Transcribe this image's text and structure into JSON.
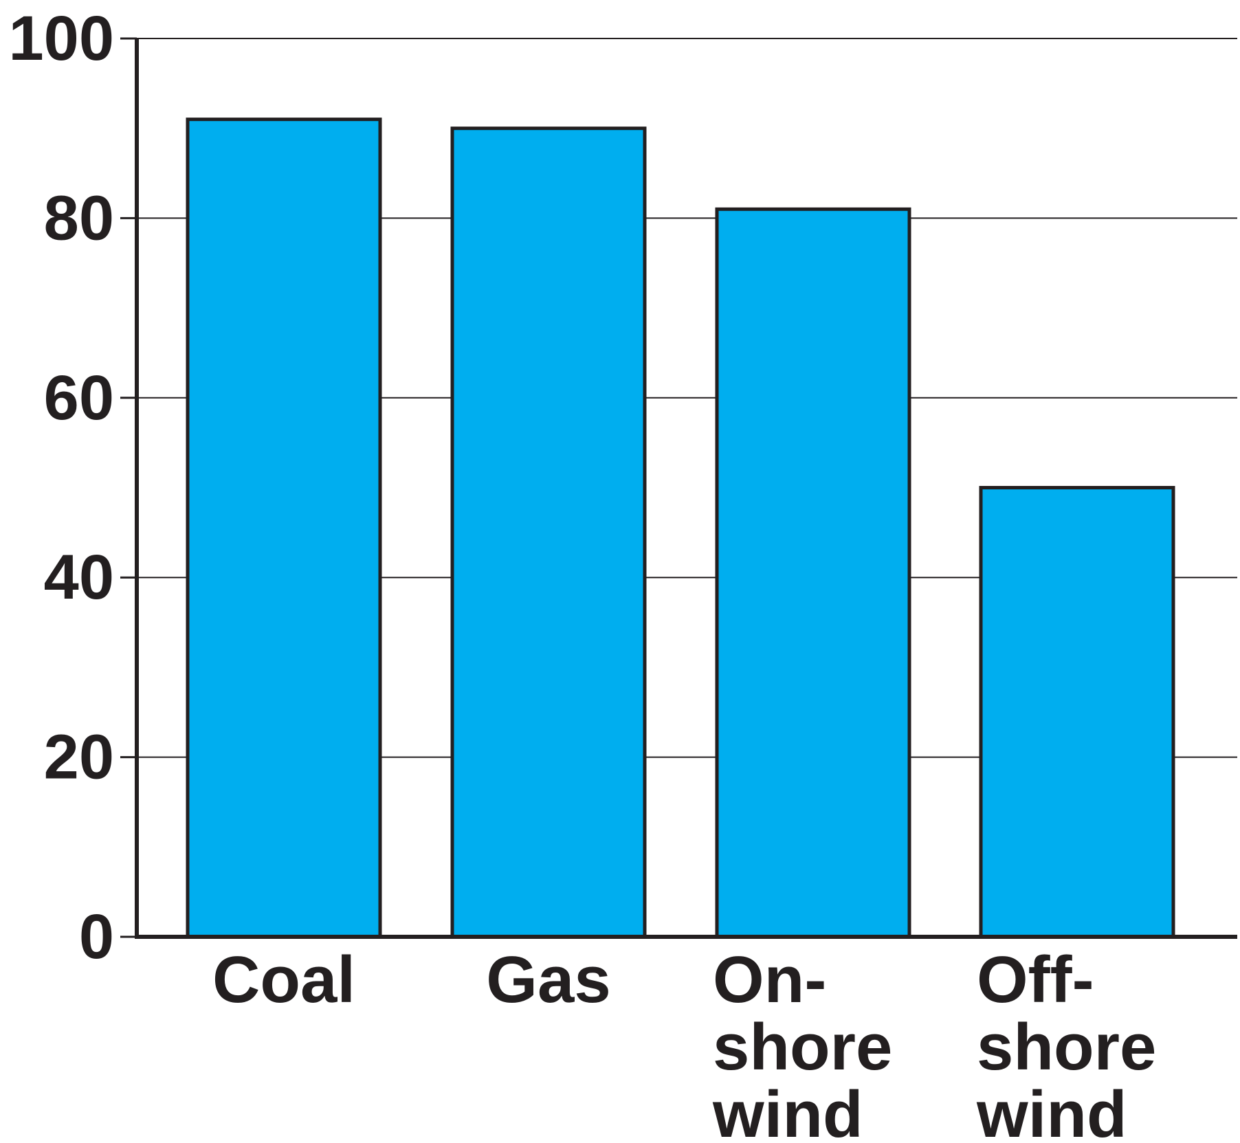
{
  "chart_data": {
    "type": "bar",
    "title": "",
    "xlabel": "",
    "ylabel": "",
    "categories": [
      [
        "Coal"
      ],
      [
        "Gas"
      ],
      [
        "On-",
        "shore",
        "wind"
      ],
      [
        "Off-",
        "shore",
        "wind"
      ]
    ],
    "values": [
      91,
      90,
      81,
      50
    ],
    "ylim": [
      0,
      100
    ],
    "yticks": [
      "0",
      "20",
      "40",
      "60",
      "80",
      "100"
    ],
    "grid": true,
    "legend": "none",
    "colors": {
      "bar_fill": "#00aeef",
      "bar_stroke": "#231f20",
      "axis": "#231f20",
      "grid": "#231f20",
      "text": "#231f20"
    }
  }
}
